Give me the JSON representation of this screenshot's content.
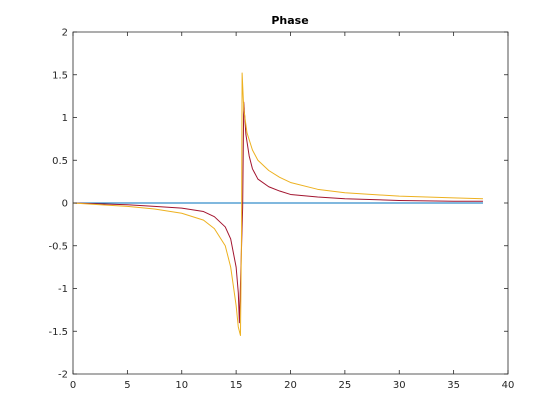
{
  "chart_data": {
    "type": "line",
    "title": "Phase",
    "xlabel": "",
    "ylabel": "",
    "xlim": [
      0,
      40
    ],
    "ylim": [
      -2,
      2
    ],
    "xticks": [
      0,
      5,
      10,
      15,
      20,
      25,
      30,
      35,
      40
    ],
    "yticks": [
      -2,
      -1.5,
      -1,
      -0.5,
      0,
      0.5,
      1,
      1.5,
      2
    ],
    "grid": false,
    "colors": [
      "#0072BD",
      "#D95319",
      "#A2142F",
      "#EDB120"
    ],
    "series": [
      {
        "color": "#0072BD",
        "x": [
          0,
          5,
          10,
          15,
          15.5,
          16,
          20,
          25,
          30,
          35,
          37.7
        ],
        "y": [
          0,
          0,
          0,
          0,
          0,
          0,
          0,
          0,
          0,
          0,
          0
        ]
      },
      {
        "color": "#A2142F",
        "x": [
          0,
          2.5,
          5,
          7.5,
          10,
          12,
          13,
          14,
          14.5,
          15,
          15.2,
          15.3,
          15.6,
          15.7,
          15.9,
          16.2,
          16.5,
          17,
          18,
          19,
          20,
          22.5,
          25,
          30,
          35,
          37.7
        ],
        "y": [
          0,
          -0.01,
          -0.02,
          -0.04,
          -0.06,
          -0.1,
          -0.16,
          -0.28,
          -0.42,
          -0.75,
          -1.05,
          -1.4,
          -0.05,
          1.18,
          0.8,
          0.55,
          0.4,
          0.28,
          0.19,
          0.14,
          0.1,
          0.07,
          0.05,
          0.03,
          0.02,
          0.02
        ]
      },
      {
        "color": "#EDB120",
        "x": [
          0,
          2.5,
          5,
          7.5,
          10,
          12,
          13,
          14,
          14.5,
          15,
          15.2,
          15.4,
          15.5,
          15.55,
          15.7,
          16,
          16.5,
          17,
          18,
          19,
          20,
          22.5,
          25,
          30,
          35,
          37.7
        ],
        "y": [
          0,
          -0.02,
          -0.04,
          -0.07,
          -0.12,
          -0.2,
          -0.3,
          -0.5,
          -0.75,
          -1.2,
          -1.45,
          -1.55,
          -0.3,
          1.52,
          1.1,
          0.82,
          0.62,
          0.5,
          0.38,
          0.3,
          0.24,
          0.16,
          0.12,
          0.08,
          0.06,
          0.05
        ]
      }
    ]
  }
}
